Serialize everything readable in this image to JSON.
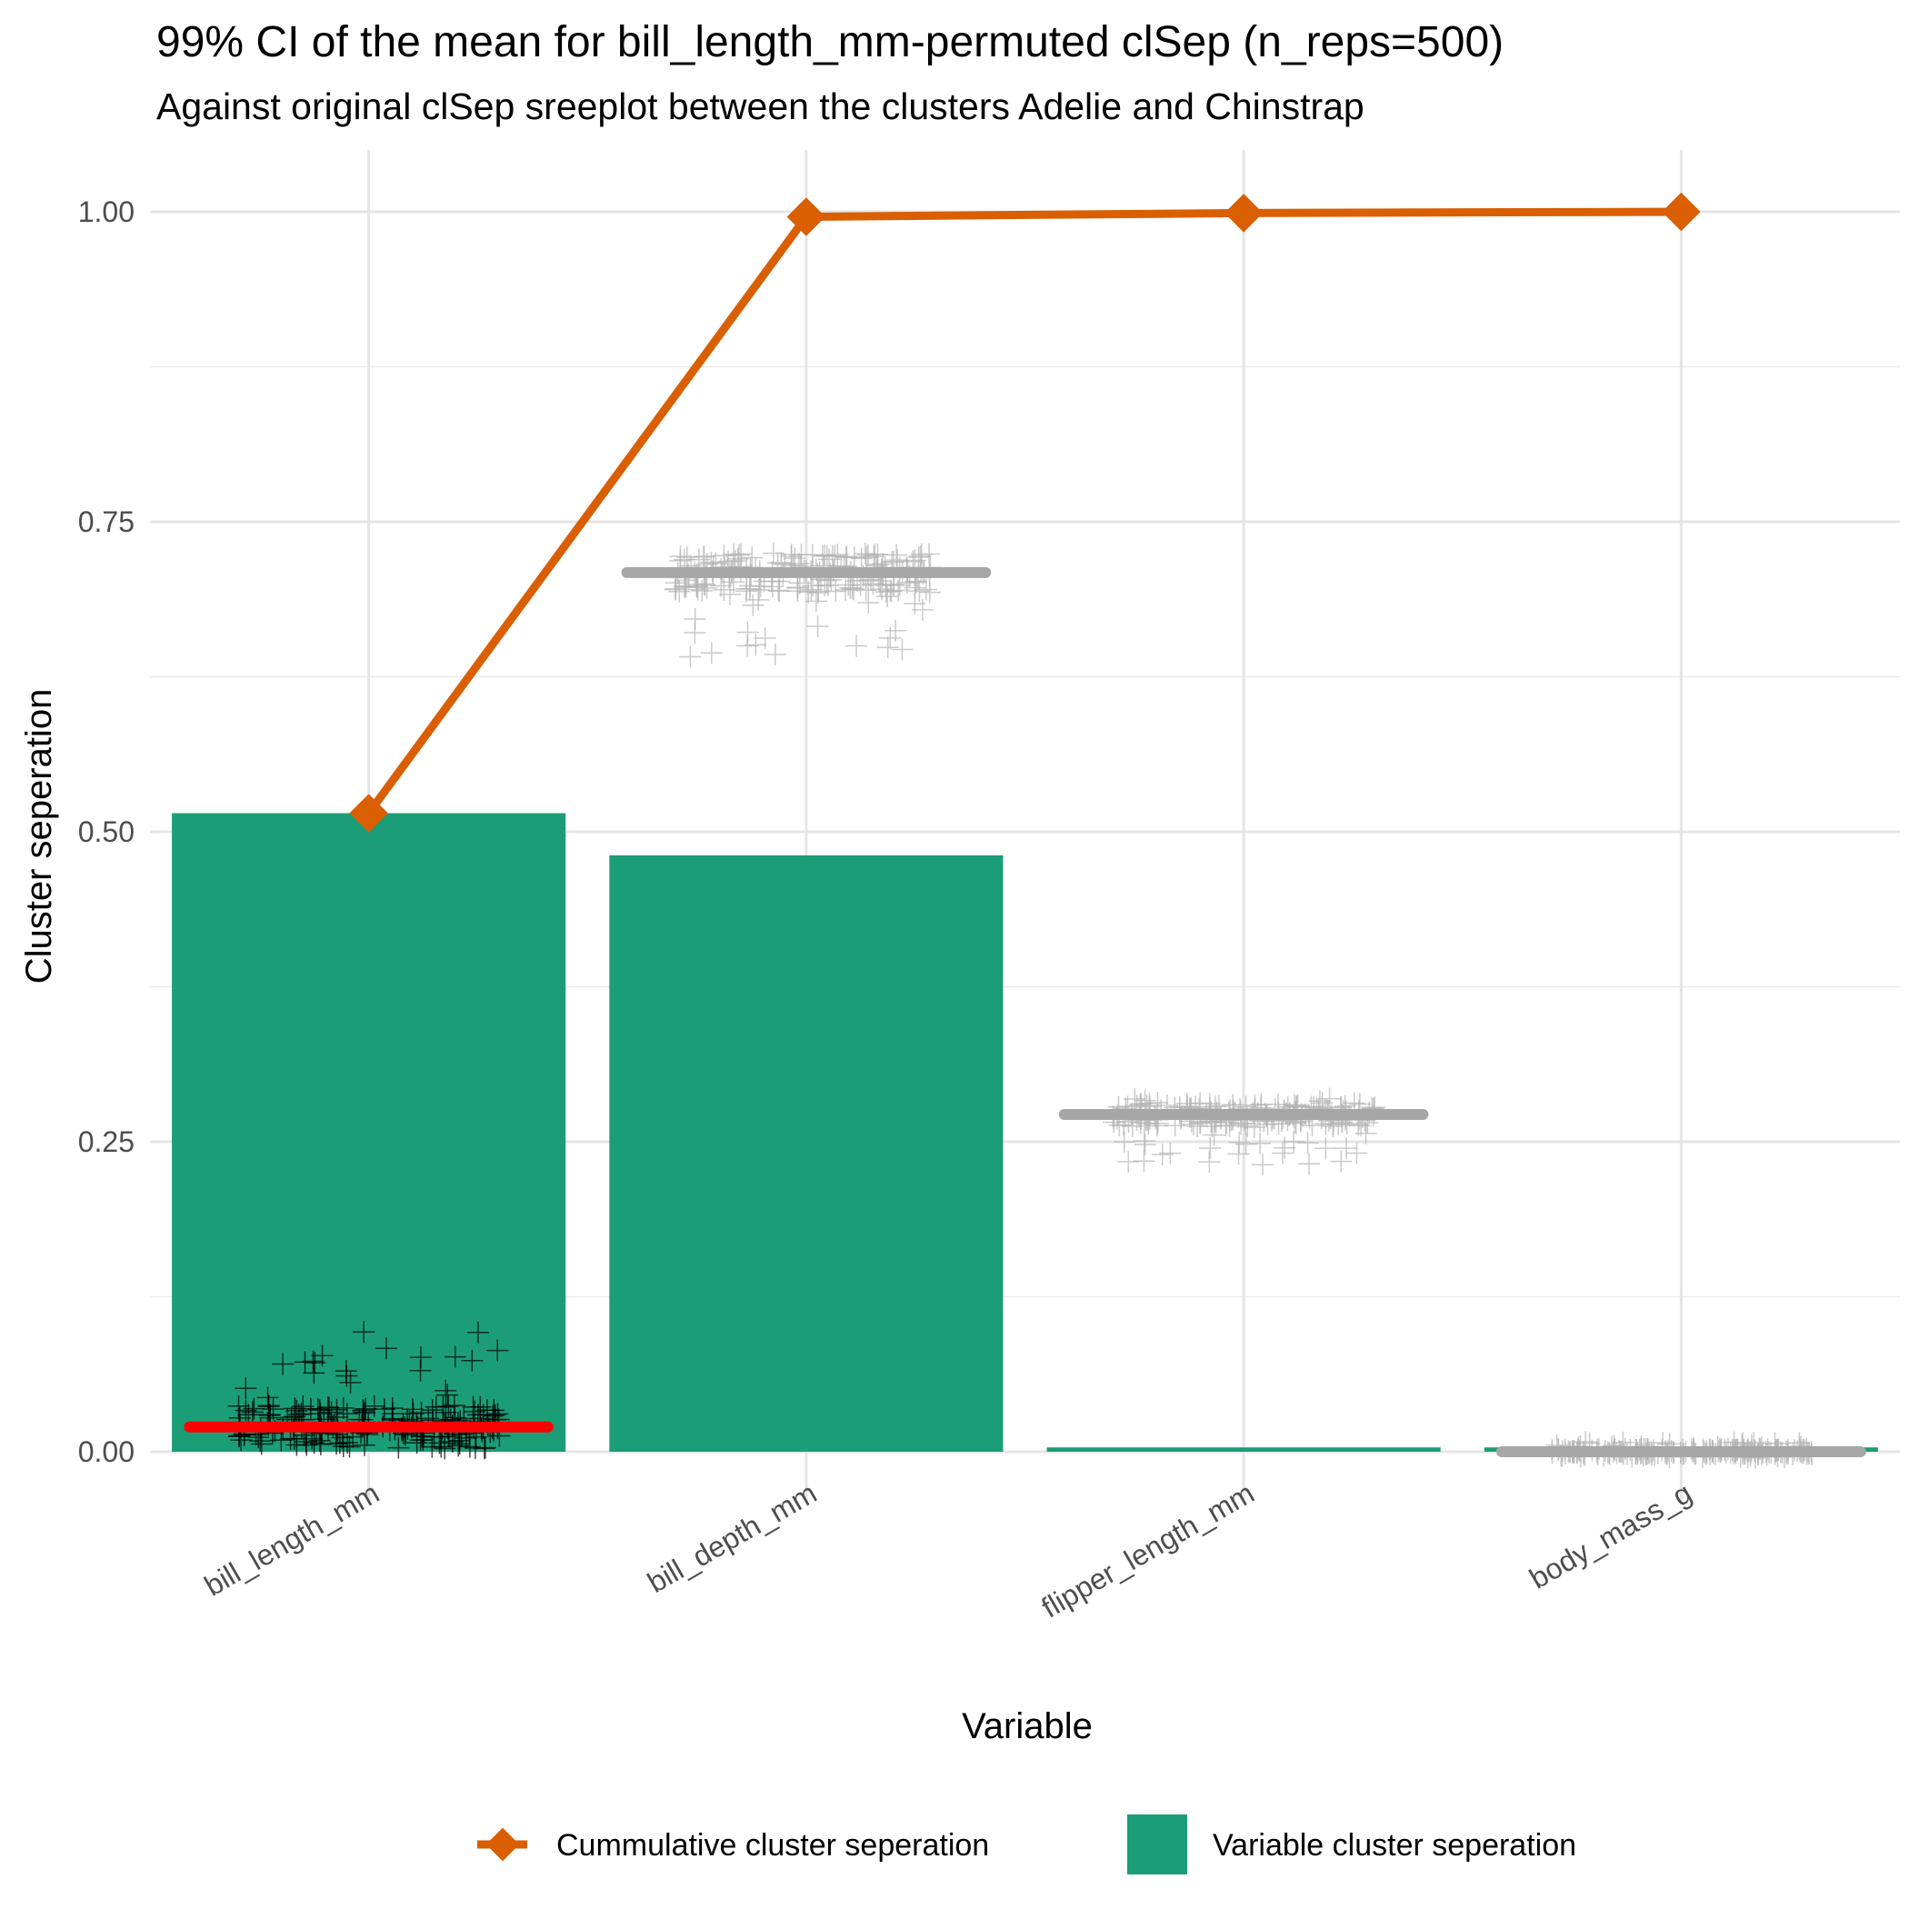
{
  "chart_data": {
    "type": "bar",
    "title": "99% CI of the mean for bill_length_mm-permuted clSep (n_reps=500)",
    "subtitle": "Against original clSep sreeplot between the clusters Adelie and Chinstrap",
    "xlabel": "Variable",
    "ylabel": "Cluster seperation",
    "ylim": [
      -0.04,
      1.05
    ],
    "yticks": [
      "0.00",
      "0.25",
      "0.50",
      "0.75",
      "1.00"
    ],
    "categories": [
      "bill_length_mm",
      "bill_depth_mm",
      "flipper_length_mm",
      "body_mass_g"
    ],
    "series": [
      {
        "name": "Variable cluster seperation",
        "type": "bar",
        "values": [
          0.515,
          0.481,
          0.003,
          0.001
        ],
        "color": "#1B9E77"
      },
      {
        "name": "Cummulative cluster seperation",
        "type": "line",
        "values": [
          0.515,
          0.996,
          0.999,
          1.0
        ],
        "color": "#D95F02"
      }
    ],
    "permuted": {
      "n_reps": 500,
      "means": [
        0.02,
        0.709,
        0.272,
        0.0
      ],
      "mean_colors": [
        "#FF0000",
        "#A6A6A6",
        "#A6A6A6",
        "#A6A6A6"
      ],
      "point_colors": [
        "#000000",
        "#B3B3B3",
        "#B3B3B3",
        "#B3B3B3"
      ],
      "spread": [
        {
          "min": 0.0,
          "max": 0.1
        },
        {
          "min": 0.64,
          "max": 0.73
        },
        {
          "min": 0.23,
          "max": 0.285
        },
        {
          "min": -0.005,
          "max": 0.008
        }
      ]
    },
    "grid": true,
    "legend_position": "bottom"
  }
}
